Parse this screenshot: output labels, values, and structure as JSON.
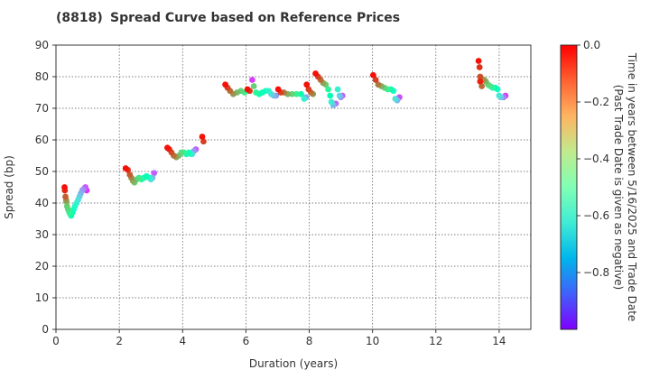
{
  "chart_data": {
    "type": "scatter",
    "title_code": "(8818)",
    "title": "Spread Curve based on Reference Prices",
    "xlabel": "Duration (years)",
    "ylabel": "Spread (bp)",
    "xlim": [
      0,
      15
    ],
    "ylim": [
      0,
      90
    ],
    "xticks": [
      0,
      2,
      4,
      6,
      8,
      10,
      12,
      14
    ],
    "yticks": [
      0,
      10,
      20,
      30,
      40,
      50,
      60,
      70,
      80,
      90
    ],
    "grid": true,
    "colorbar": {
      "label_line1": "Time in years between 5/16/2025 and Trade Date",
      "label_line2": "(Past Trade Date is given as negative)",
      "colormap": "rainbow",
      "range": [
        -1.0,
        0.0
      ],
      "ticks": [
        0.0,
        -0.2,
        -0.4,
        -0.6,
        -0.8
      ],
      "tick_labels": [
        "0.0",
        "−0.2",
        "−0.4",
        "−0.6",
        "−0.8"
      ]
    },
    "series": [
      {
        "points": [
          [
            0.27,
            45.0,
            -0.02
          ],
          [
            0.28,
            44.0,
            -0.05
          ],
          [
            0.3,
            42.0,
            -0.12
          ],
          [
            0.32,
            41.0,
            -0.2
          ],
          [
            0.33,
            40.5,
            -0.25
          ],
          [
            0.35,
            39.0,
            -0.3
          ],
          [
            0.38,
            38.0,
            -0.35
          ],
          [
            0.42,
            37.0,
            -0.4
          ],
          [
            0.45,
            36.5,
            -0.45
          ],
          [
            0.48,
            36.0,
            -0.48
          ],
          [
            0.52,
            37.0,
            -0.52
          ],
          [
            0.56,
            38.0,
            -0.55
          ],
          [
            0.6,
            39.0,
            -0.58
          ],
          [
            0.65,
            40.0,
            -0.62
          ],
          [
            0.7,
            41.0,
            -0.66
          ],
          [
            0.74,
            42.0,
            -0.7
          ],
          [
            0.78,
            43.0,
            -0.75
          ],
          [
            0.83,
            44.0,
            -0.8
          ],
          [
            0.88,
            44.5,
            -0.85
          ],
          [
            0.93,
            45.0,
            -0.9
          ],
          [
            0.97,
            44.0,
            -0.94
          ]
        ]
      },
      {
        "points": [
          [
            2.2,
            51.0,
            -0.02
          ],
          [
            2.27,
            50.5,
            -0.06
          ],
          [
            2.33,
            49.0,
            -0.12
          ],
          [
            2.38,
            48.0,
            -0.18
          ],
          [
            2.43,
            47.0,
            -0.24
          ],
          [
            2.48,
            46.5,
            -0.28
          ],
          [
            2.55,
            47.5,
            -0.33
          ],
          [
            2.62,
            48.0,
            -0.38
          ],
          [
            2.7,
            47.5,
            -0.43
          ],
          [
            2.78,
            48.0,
            -0.48
          ],
          [
            2.86,
            48.5,
            -0.52
          ],
          [
            2.94,
            48.0,
            -0.58
          ],
          [
            3.0,
            47.5,
            -0.66
          ],
          [
            3.05,
            48.0,
            -0.76
          ],
          [
            3.1,
            49.5,
            -0.88
          ]
        ]
      },
      {
        "points": [
          [
            3.52,
            57.5,
            -0.02
          ],
          [
            3.58,
            57.0,
            -0.06
          ],
          [
            3.65,
            56.0,
            -0.1
          ],
          [
            3.72,
            55.0,
            -0.15
          ],
          [
            3.8,
            54.5,
            -0.22
          ],
          [
            3.88,
            55.0,
            -0.28
          ],
          [
            3.96,
            56.0,
            -0.34
          ],
          [
            4.04,
            56.0,
            -0.4
          ],
          [
            4.12,
            55.5,
            -0.46
          ],
          [
            4.2,
            56.0,
            -0.53
          ],
          [
            4.26,
            55.5,
            -0.6
          ],
          [
            4.3,
            55.5,
            -0.7
          ],
          [
            4.36,
            56.5,
            -0.8
          ],
          [
            4.42,
            57.0,
            -0.88
          ]
        ]
      },
      {
        "points": [
          [
            4.62,
            61.0,
            -0.02
          ],
          [
            4.66,
            59.5,
            -0.08
          ]
        ]
      },
      {
        "points": [
          [
            5.35,
            77.5,
            -0.02
          ],
          [
            5.42,
            76.5,
            -0.08
          ],
          [
            5.5,
            75.5,
            -0.14
          ],
          [
            5.6,
            74.5,
            -0.2
          ],
          [
            5.72,
            75.0,
            -0.26
          ],
          [
            5.84,
            75.5,
            -0.32
          ],
          [
            5.96,
            75.0,
            -0.38
          ],
          [
            6.05,
            76.0,
            -0.02
          ],
          [
            6.12,
            75.5,
            -0.08
          ],
          [
            6.2,
            79.0,
            -0.92
          ],
          [
            6.25,
            77.0,
            -0.3
          ],
          [
            6.32,
            75.0,
            -0.42
          ],
          [
            6.42,
            74.5,
            -0.48
          ],
          [
            6.52,
            75.0,
            -0.52
          ],
          [
            6.62,
            75.5,
            -0.56
          ],
          [
            6.72,
            75.5,
            -0.6
          ],
          [
            6.8,
            74.5,
            -0.68
          ],
          [
            6.88,
            74.0,
            -0.74
          ],
          [
            6.95,
            74.0,
            -0.8
          ]
        ]
      },
      {
        "points": [
          [
            7.02,
            76.0,
            -0.02
          ],
          [
            7.1,
            75.0,
            -0.08
          ],
          [
            7.2,
            75.0,
            -0.16
          ],
          [
            7.32,
            74.5,
            -0.24
          ],
          [
            7.46,
            74.5,
            -0.32
          ],
          [
            7.6,
            74.5,
            -0.4
          ],
          [
            7.74,
            74.5,
            -0.48
          ],
          [
            7.84,
            73.0,
            -0.62
          ],
          [
            7.9,
            73.5,
            -0.78
          ]
        ]
      },
      {
        "points": [
          [
            7.92,
            77.5,
            -0.02
          ],
          [
            7.98,
            76.0,
            -0.08
          ],
          [
            8.05,
            75.0,
            -0.14
          ],
          [
            8.12,
            74.5,
            -0.2
          ],
          [
            8.2,
            81.0,
            -0.02
          ],
          [
            8.28,
            80.0,
            -0.08
          ],
          [
            8.36,
            79.0,
            -0.14
          ],
          [
            8.44,
            78.0,
            -0.22
          ],
          [
            8.52,
            77.5,
            -0.3
          ],
          [
            8.6,
            76.0,
            -0.42
          ],
          [
            8.66,
            74.0,
            -0.5
          ],
          [
            8.7,
            72.0,
            -0.62
          ],
          [
            8.76,
            71.0,
            -0.74
          ],
          [
            8.84,
            71.5,
            -0.86
          ],
          [
            8.9,
            76.0,
            -0.6
          ],
          [
            8.96,
            74.0,
            -0.7
          ],
          [
            9.0,
            73.5,
            -0.8
          ],
          [
            9.05,
            74.0,
            -0.88
          ]
        ]
      },
      {
        "points": [
          [
            10.02,
            80.5,
            -0.02
          ],
          [
            10.1,
            79.0,
            -0.08
          ],
          [
            10.18,
            77.5,
            -0.16
          ],
          [
            10.28,
            77.0,
            -0.24
          ],
          [
            10.38,
            76.5,
            -0.32
          ],
          [
            10.48,
            76.0,
            -0.4
          ],
          [
            10.58,
            76.0,
            -0.48
          ],
          [
            10.66,
            75.5,
            -0.56
          ],
          [
            10.72,
            73.0,
            -0.66
          ],
          [
            10.78,
            72.5,
            -0.74
          ],
          [
            10.85,
            73.5,
            -0.9
          ]
        ]
      },
      {
        "points": [
          [
            13.35,
            85.0,
            -0.02
          ],
          [
            13.38,
            83.0,
            -0.06
          ],
          [
            13.4,
            80.0,
            -0.1
          ],
          [
            13.4,
            78.5,
            -0.04
          ],
          [
            13.45,
            77.0,
            -0.14
          ],
          [
            13.52,
            79.0,
            -0.2
          ],
          [
            13.58,
            78.5,
            -0.26
          ],
          [
            13.65,
            77.5,
            -0.32
          ],
          [
            13.72,
            77.0,
            -0.38
          ],
          [
            13.8,
            76.5,
            -0.44
          ],
          [
            13.88,
            76.5,
            -0.5
          ],
          [
            13.95,
            76.0,
            -0.56
          ],
          [
            14.0,
            74.0,
            -0.64
          ],
          [
            14.06,
            73.5,
            -0.72
          ],
          [
            14.14,
            73.5,
            -0.84
          ],
          [
            14.2,
            74.0,
            -0.92
          ]
        ]
      }
    ]
  }
}
